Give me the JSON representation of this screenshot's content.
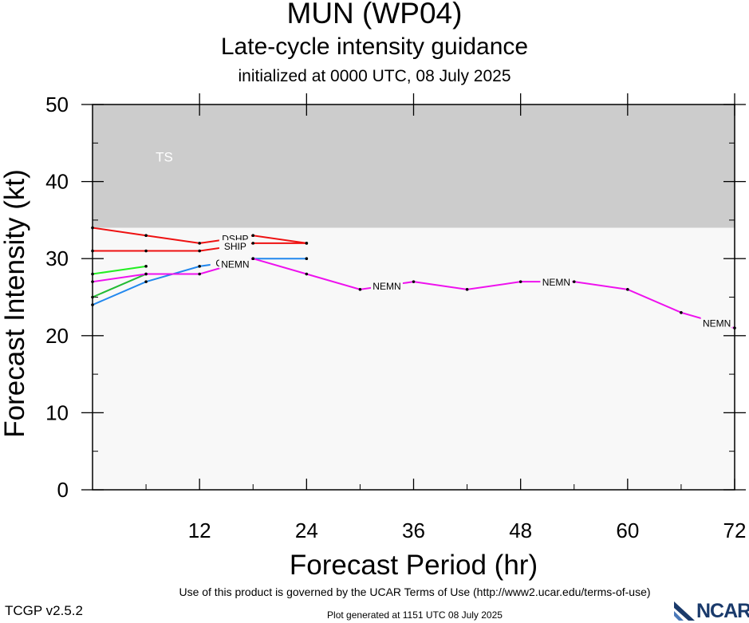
{
  "header": {
    "title": "MUN (WP04)",
    "subtitle": "Late-cycle intensity guidance",
    "init": "initialized at 0000 UTC, 08 July 2025"
  },
  "footer": {
    "terms": "Use of this product is governed by the UCAR Terms of Use (http://www2.ucar.edu/terms-of-use)",
    "version": "TCGP v2.5.2",
    "generated": "Plot generated at 1151 UTC   08 July 2025",
    "logo": "NCAR"
  },
  "chart_data": {
    "type": "line",
    "xlabel": "Forecast Period (hr)",
    "ylabel": "Forecast Intensity (kt)",
    "xlim": [
      0,
      72
    ],
    "ylim": [
      0,
      50
    ],
    "xticks": [
      12,
      24,
      36,
      48,
      60,
      72
    ],
    "yticks": [
      0,
      10,
      20,
      30,
      40,
      50
    ],
    "bands": [
      {
        "label": "TS",
        "from": 34,
        "to": 50,
        "color": "#cccccc"
      },
      {
        "label": "",
        "from": 0,
        "to": 34,
        "color": "#f8f8f8"
      }
    ],
    "series": [
      {
        "name": "DSHP",
        "color": "#ee1111",
        "x": [
          0,
          6,
          12,
          18,
          24
        ],
        "y": [
          34,
          33,
          32,
          33,
          32
        ],
        "label_at": 16
      },
      {
        "name": "SHIP",
        "color": "#ee1111",
        "x": [
          0,
          6,
          12,
          18,
          24
        ],
        "y": [
          31,
          31,
          31,
          32,
          32
        ],
        "label_at": 16
      },
      {
        "name": "",
        "color": "#22ee22",
        "x": [
          0,
          6
        ],
        "y": [
          28,
          29
        ]
      },
      {
        "name": "",
        "color": "#22bb33",
        "x": [
          0,
          6
        ],
        "y": [
          25,
          28
        ]
      },
      {
        "name": "CLIP",
        "color": "#2288ee",
        "x": [
          0,
          6,
          12,
          18,
          24
        ],
        "y": [
          24,
          27,
          29,
          30,
          30
        ],
        "label_at": 15
      },
      {
        "name": "NEMN",
        "color": "#ee11ee",
        "x": [
          0,
          6,
          12,
          18,
          24,
          30,
          36,
          42,
          48,
          54,
          60,
          66,
          72
        ],
        "y": [
          27,
          28,
          28,
          30,
          28,
          26,
          27,
          26,
          27,
          27,
          26,
          23,
          21
        ],
        "label_at": [
          16,
          33,
          52,
          70
        ]
      }
    ]
  }
}
